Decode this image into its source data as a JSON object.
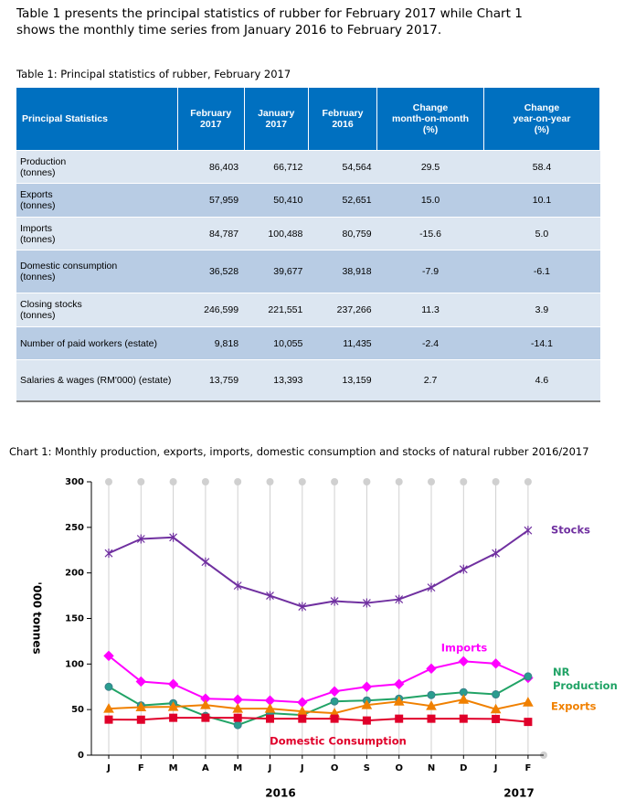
{
  "intro": "Table 1 presents the principal statistics of rubber for February 2017 while Chart 1\nshows the monthly time series from January 2016 to February 2017.",
  "table": {
    "caption": "Table 1: Principal statistics of rubber, February 2017",
    "header": [
      "Principal Statistics",
      "February\n2017",
      "January\n2017",
      "February\n2016",
      "Change\nmonth-on-month\n(%)",
      "Change\nyear-on-year\n(%)"
    ],
    "rows": [
      [
        "Production\n(tonnes)",
        "86,403",
        "66,712",
        "54,564",
        "29.5",
        "58.4"
      ],
      [
        "Exports\n(tonnes)",
        "57,959",
        "50,410",
        "52,651",
        "15.0",
        "10.1"
      ],
      [
        "Imports\n(tonnes)",
        "84,787",
        "100,488",
        "80,759",
        "-15.6",
        "5.0"
      ],
      [
        "Domestic consumption\n(tonnes)",
        "36,528",
        "39,677",
        "38,918",
        "-7.9",
        "-6.1"
      ],
      [
        "Closing stocks\n(tonnes)",
        "246,599",
        "221,551",
        "237,266",
        "11.3",
        "3.9"
      ],
      [
        "Number of paid workers (estate)",
        "9,818",
        "10,055",
        "11,435",
        "-2.4",
        "-14.1"
      ],
      [
        "Salaries & wages (RM'000) (estate)",
        "13,759",
        "13,393",
        "13,159",
        "2.7",
        "4.6"
      ]
    ]
  },
  "chart_data": {
    "type": "line",
    "title": "Chart 1: Monthly production, exports, imports, domestic consumption and stocks of natural rubber 2016/2017",
    "y_label": "'000 tonnes",
    "categories": [
      "J",
      "F",
      "M",
      "A",
      "M",
      "J",
      "J",
      "O",
      "S",
      "O",
      "N",
      "D",
      "J",
      "F"
    ],
    "x_group_labels": [
      "2016",
      "2017"
    ],
    "ylim": [
      0,
      300
    ],
    "yticks": [
      0,
      50,
      100,
      150,
      200,
      250,
      300
    ],
    "series": [
      {
        "name": "Stocks",
        "color": "#7030a0",
        "marker": "star",
        "values": [
          221.6,
          237.3,
          239,
          212,
          186,
          175,
          163,
          169,
          167,
          171,
          184,
          204,
          221.6,
          246.6
        ]
      },
      {
        "name": "Imports",
        "color": "#ff00ff",
        "marker": "diamond",
        "values": [
          109,
          80.8,
          78,
          62,
          61,
          60,
          58,
          70,
          75,
          78,
          95,
          103,
          100.5,
          84.8
        ]
      },
      {
        "name": "NR\nProduction",
        "color": "#21a366",
        "marker": "circle",
        "values": [
          75,
          54.6,
          57,
          43,
          33,
          46,
          44,
          59,
          60,
          62,
          66,
          69,
          66.7,
          86.4
        ]
      },
      {
        "name": "Exports",
        "color": "#f08000",
        "marker": "triangle",
        "values": [
          51,
          52.7,
          53,
          55,
          51,
          51,
          48,
          46,
          55,
          59,
          54,
          61,
          50.4,
          58.0
        ]
      },
      {
        "name": "Domestic Consumption",
        "color": "#e0002a",
        "marker": "square",
        "values": [
          39,
          38.9,
          41,
          41,
          41,
          40,
          40,
          40,
          38,
          40,
          40,
          40,
          39.7,
          36.5
        ]
      }
    ]
  }
}
